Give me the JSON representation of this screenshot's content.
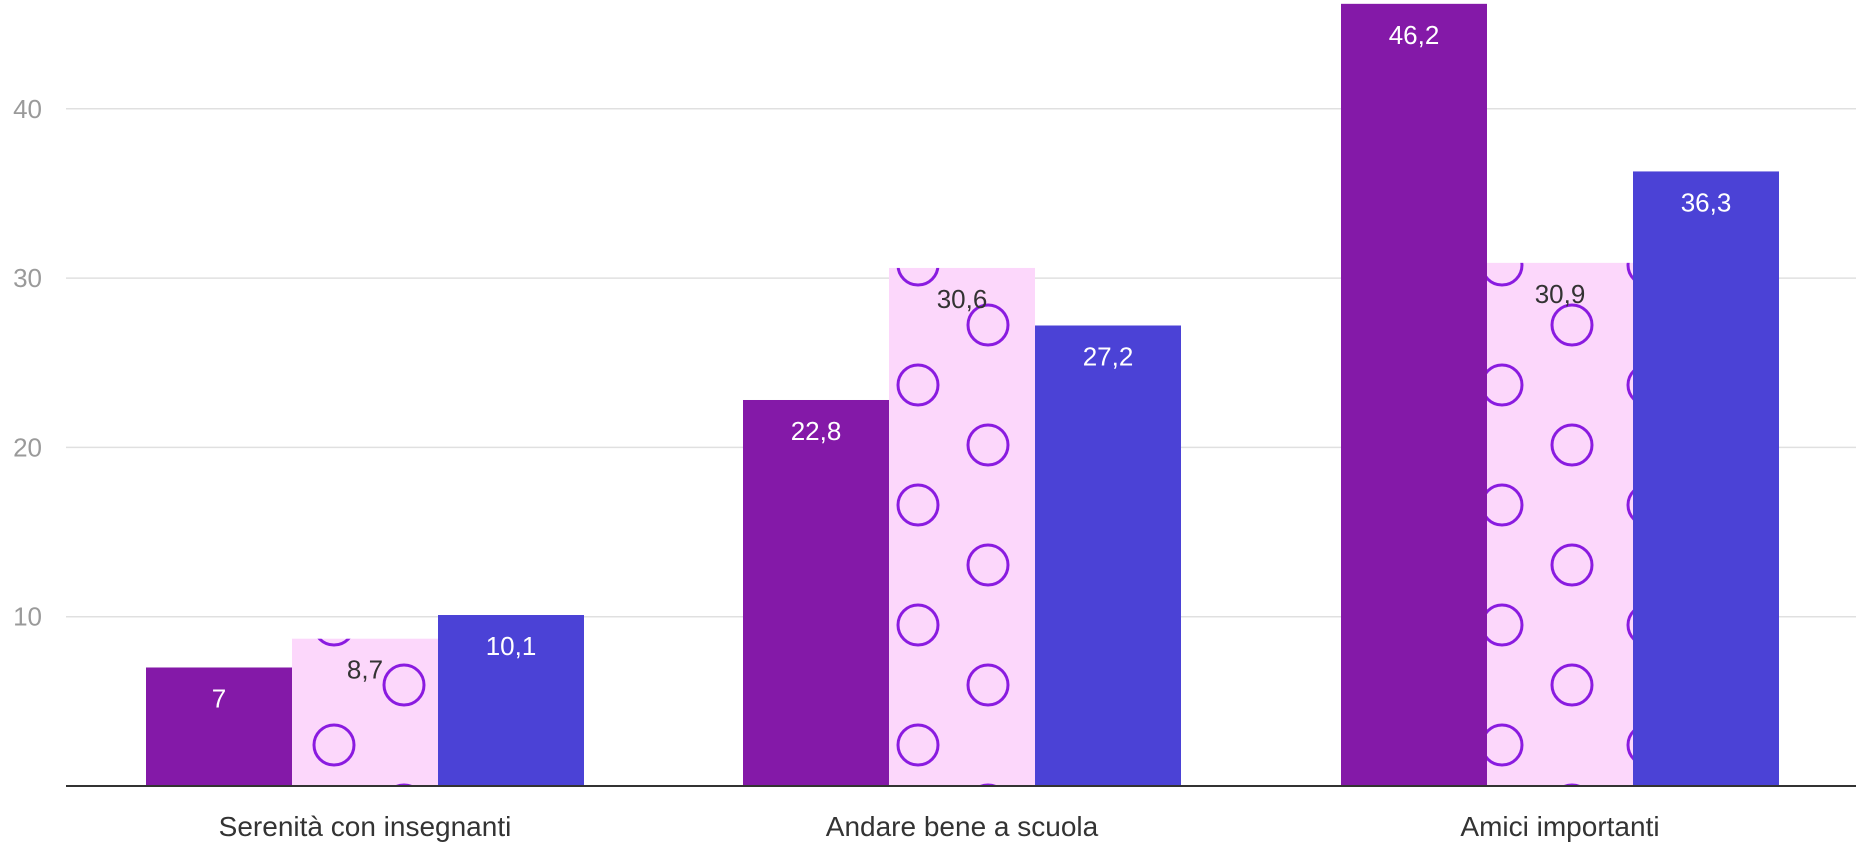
{
  "chart_data": {
    "type": "bar",
    "categories": [
      "Serenità con insegnanti",
      "Andare bene a scuola",
      "Amici importanti"
    ],
    "series": [
      {
        "values": [
          7,
          22.8,
          46.2
        ],
        "labels": [
          "7",
          "22,8",
          "46,2"
        ],
        "color": "#8419a8",
        "pattern": "solid",
        "label_color": "#ffffff"
      },
      {
        "values": [
          8.7,
          30.6,
          30.9
        ],
        "labels": [
          "8,7",
          "30,6",
          "30,9"
        ],
        "color": "#fcd7fb",
        "pattern": "circles",
        "pattern_color": "#8a1be0",
        "label_color": "#333333"
      },
      {
        "values": [
          10.1,
          27.2,
          36.3
        ],
        "labels": [
          "10,1",
          "27,2",
          "36,3"
        ],
        "color": "#4b42d6",
        "pattern": "solid",
        "label_color": "#ffffff"
      }
    ],
    "yticks": [
      "10",
      "20",
      "30",
      "40"
    ],
    "ylim": [
      0,
      46.2
    ],
    "grid": true,
    "legend": "none"
  }
}
